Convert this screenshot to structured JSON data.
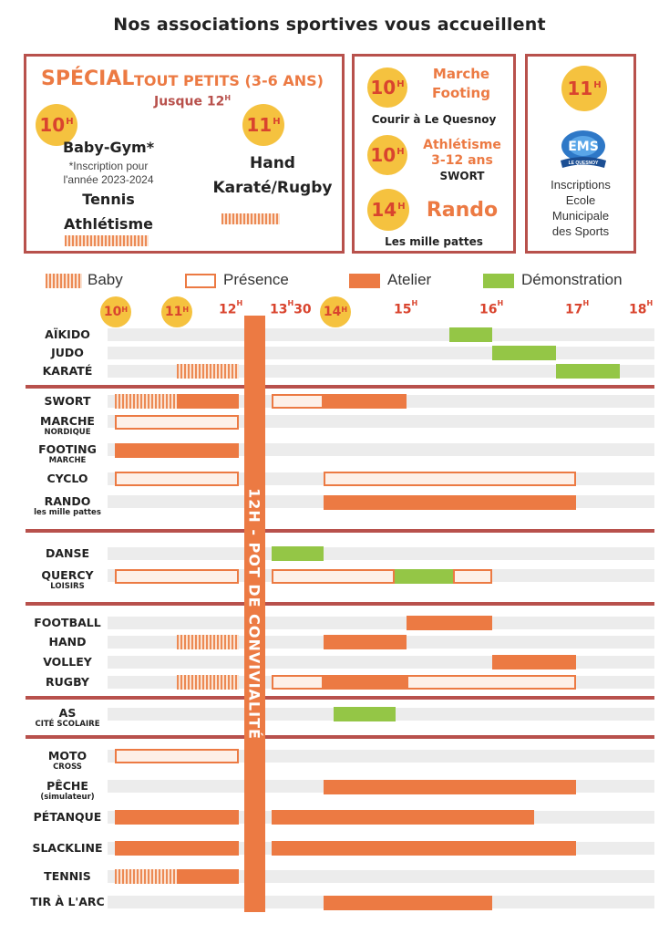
{
  "title": "Nos associations sportives vous accueillent",
  "left_box": {
    "special": "SPÉCIAL",
    "tout_petits": "TOUT PETITS  (3-6 ANS)",
    "jusque": "Jusque 12",
    "jusque_sup": "H",
    "c10": "10",
    "c10_sup": "H",
    "c11": "11",
    "c11_sup": "H",
    "babygym": "Baby-Gym*",
    "note1": "*Inscription pour",
    "note2": "l'année 2023-2024",
    "tennis": "Tennis",
    "athletisme": "Athlétisme",
    "hand": "Hand",
    "karate_rugby": "Karaté/Rugby"
  },
  "mid_box": {
    "c1": "10",
    "c1_sup": "H",
    "marche": "Marche",
    "footing": "Footing",
    "courir": "Courir à Le Quesnoy",
    "c2": "10",
    "c2_sup": "H",
    "athl": "Athlétisme",
    "age": "3-12 ans",
    "swort": "SWORT",
    "c3": "14",
    "c3_sup": "H",
    "rando": "Rando",
    "mille": "Les mille pattes"
  },
  "right_box": {
    "c": "11",
    "c_sup": "H",
    "logo_text": "LE QUESNOY",
    "line1": "Inscriptions",
    "line2": "Ecole",
    "line3": "Municipale",
    "line4": "des Sports"
  },
  "legend": {
    "baby": "Baby",
    "presence": "Présence",
    "atelier": "Atelier",
    "demo": "Démonstration"
  },
  "time_labels": {
    "t10": "10",
    "t11": "11",
    "t12": "12",
    "t1330": "13",
    "t1330b": "30",
    "t14": "14",
    "t15": "15",
    "t16": "16",
    "t17": "17",
    "t18": "18",
    "h": "H"
  },
  "pot": "12H - POT DE CONVIVIALITÉ",
  "activities": {
    "aikido": "AÏKIDO",
    "judo": "JUDO",
    "karate": "KARATÉ",
    "swort": "SWORT",
    "marche_nordique_1": "MARCHE",
    "marche_nordique_2": "NORDIQUE",
    "footing_1": "FOOTING",
    "footing_2": "MARCHE",
    "cyclo": "CYCLO",
    "rando": "RANDO",
    "rando_sub": "les mille pattes",
    "danse": "DANSE",
    "quercy_1": "QUERCY",
    "quercy_2": "LOISIRS",
    "football": "FOOTBALL",
    "hand": "HAND",
    "volley": "VOLLEY",
    "rugby": "RUGBY",
    "as_1": "AS",
    "as_2": "CITÉ SCOLAIRE",
    "moto_1": "MOTO",
    "moto_2": "CROSS",
    "peche": "PÊCHE",
    "peche_sub": "(simulateur)",
    "petanque": "PÉTANQUE",
    "slackline": "SLACKLINE",
    "tennis": "TENNIS",
    "tir": "TIR À L'ARC"
  },
  "colors": {
    "atelier": "#ec7a43",
    "demonstration": "#94c646",
    "frame": "#b8514c",
    "hour_circle": "#f5c23f"
  },
  "schedule": [
    {
      "activity": "AÏKIDO",
      "slots": [
        {
          "type": "demonstration",
          "start": "15:40",
          "end": "16:00"
        }
      ]
    },
    {
      "activity": "JUDO",
      "slots": [
        {
          "type": "demonstration",
          "start": "16:00",
          "end": "16:45"
        }
      ]
    },
    {
      "activity": "KARATÉ",
      "slots": [
        {
          "type": "baby",
          "start": "11:00",
          "end": "12:00"
        },
        {
          "type": "demonstration",
          "start": "16:45",
          "end": "17:30"
        }
      ]
    },
    {
      "activity": "SWORT",
      "slots": [
        {
          "type": "baby",
          "start": "10:00",
          "end": "11:00"
        },
        {
          "type": "atelier",
          "start": "11:00",
          "end": "12:00"
        },
        {
          "type": "presence",
          "start": "13:30",
          "end": "14:00"
        },
        {
          "type": "atelier",
          "start": "14:00",
          "end": "15:00"
        }
      ]
    },
    {
      "activity": "MARCHE NORDIQUE",
      "slots": [
        {
          "type": "presence",
          "start": "10:00",
          "end": "12:00"
        }
      ]
    },
    {
      "activity": "FOOTING MARCHE",
      "slots": [
        {
          "type": "atelier",
          "start": "10:00",
          "end": "12:00"
        }
      ]
    },
    {
      "activity": "CYCLO",
      "slots": [
        {
          "type": "presence",
          "start": "10:00",
          "end": "12:00"
        },
        {
          "type": "presence",
          "start": "14:00",
          "end": "17:00"
        }
      ]
    },
    {
      "activity": "RANDO",
      "slots": [
        {
          "type": "atelier",
          "start": "14:00",
          "end": "17:00"
        }
      ]
    },
    {
      "activity": "DANSE",
      "slots": [
        {
          "type": "demonstration",
          "start": "13:30",
          "end": "14:00"
        }
      ]
    },
    {
      "activity": "QUERCY LOISIRS",
      "slots": [
        {
          "type": "presence",
          "start": "10:00",
          "end": "12:00"
        },
        {
          "type": "presence",
          "start": "13:30",
          "end": "15:00"
        },
        {
          "type": "demonstration",
          "start": "15:00",
          "end": "15:40"
        },
        {
          "type": "presence",
          "start": "15:40",
          "end": "16:00"
        }
      ]
    },
    {
      "activity": "FOOTBALL",
      "slots": [
        {
          "type": "atelier",
          "start": "15:00",
          "end": "16:00"
        }
      ]
    },
    {
      "activity": "HAND",
      "slots": [
        {
          "type": "baby",
          "start": "11:00",
          "end": "12:00"
        },
        {
          "type": "atelier",
          "start": "14:00",
          "end": "15:00"
        }
      ]
    },
    {
      "activity": "VOLLEY",
      "slots": [
        {
          "type": "atelier",
          "start": "16:00",
          "end": "17:00"
        }
      ]
    },
    {
      "activity": "RUGBY",
      "slots": [
        {
          "type": "baby",
          "start": "11:00",
          "end": "12:00"
        },
        {
          "type": "presence",
          "start": "13:30",
          "end": "14:00"
        },
        {
          "type": "atelier",
          "start": "14:00",
          "end": "15:00"
        },
        {
          "type": "presence",
          "start": "15:00",
          "end": "17:00"
        }
      ]
    },
    {
      "activity": "AS CITÉ SCOLAIRE",
      "slots": [
        {
          "type": "demonstration",
          "start": "14:10",
          "end": "14:50"
        }
      ]
    },
    {
      "activity": "MOTO CROSS",
      "slots": [
        {
          "type": "presence",
          "start": "10:00",
          "end": "12:00"
        }
      ]
    },
    {
      "activity": "PÊCHE",
      "slots": [
        {
          "type": "atelier",
          "start": "14:00",
          "end": "17:00"
        }
      ]
    },
    {
      "activity": "PÉTANQUE",
      "slots": [
        {
          "type": "atelier",
          "start": "10:00",
          "end": "12:00"
        },
        {
          "type": "atelier",
          "start": "13:30",
          "end": "16:30"
        }
      ]
    },
    {
      "activity": "SLACKLINE",
      "slots": [
        {
          "type": "atelier",
          "start": "10:00",
          "end": "12:00"
        },
        {
          "type": "atelier",
          "start": "13:30",
          "end": "17:00"
        }
      ]
    },
    {
      "activity": "TENNIS",
      "slots": [
        {
          "type": "baby",
          "start": "10:00",
          "end": "11:00"
        },
        {
          "type": "atelier",
          "start": "11:00",
          "end": "12:00"
        }
      ]
    },
    {
      "activity": "TIR À L'ARC",
      "slots": [
        {
          "type": "atelier",
          "start": "14:00",
          "end": "16:00"
        }
      ]
    }
  ]
}
